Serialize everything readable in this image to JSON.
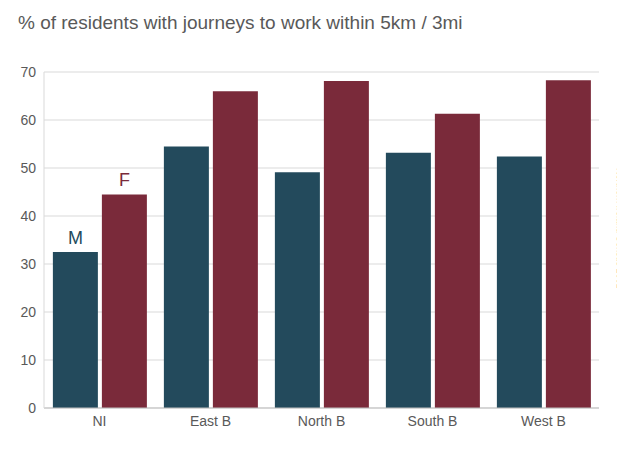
{
  "chart_data": {
    "type": "bar",
    "title": "% of residents with journeys to work within 5km / 3mi",
    "source": "Northern Ireland Census 2001",
    "categories": [
      "NI",
      "East B",
      "North B",
      "South B",
      "West B"
    ],
    "series": [
      {
        "name": "M",
        "color": "#234a5c",
        "values": [
          32.5,
          54.5,
          49.1,
          53.2,
          52.4
        ]
      },
      {
        "name": "F",
        "color": "#7a2a3a",
        "values": [
          44.5,
          66.0,
          68.1,
          61.3,
          68.3
        ]
      }
    ],
    "ylim": [
      0,
      70
    ],
    "yticks": [
      0,
      10,
      20,
      30,
      40,
      50,
      60,
      70
    ],
    "grid": true
  }
}
